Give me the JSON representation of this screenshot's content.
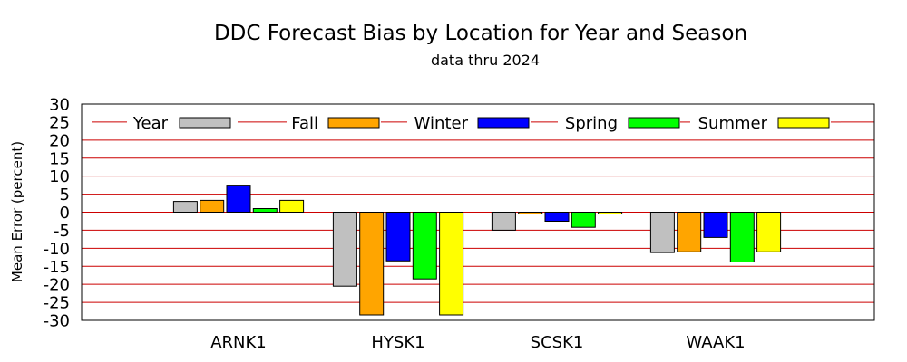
{
  "chart_data": {
    "type": "bar",
    "title": "DDC Forecast Bias by Location for Year and Season",
    "subtitle": "data thru 2024",
    "xlabel": "",
    "ylabel": "Mean Error (percent)",
    "ylim": [
      -30,
      30
    ],
    "yticks": [
      30,
      25,
      20,
      15,
      10,
      5,
      0,
      -5,
      -10,
      -15,
      -20,
      -25,
      -30
    ],
    "grid": true,
    "legend_position": "top",
    "categories": [
      "ARNK1",
      "HYSK1",
      "SCSK1",
      "WAAK1"
    ],
    "series": [
      {
        "name": "Year",
        "color": "#c0c0c0",
        "values": [
          3.0,
          -20.5,
          -5.0,
          -11.2
        ]
      },
      {
        "name": "Fall",
        "color": "#ffa500",
        "values": [
          3.3,
          -28.5,
          -0.5,
          -11.0
        ]
      },
      {
        "name": "Winter",
        "color": "#0000ff",
        "values": [
          7.5,
          -13.5,
          -2.5,
          -7.0
        ]
      },
      {
        "name": "Spring",
        "color": "#00ff00",
        "values": [
          1.0,
          -18.5,
          -4.2,
          -13.8
        ]
      },
      {
        "name": "Summer",
        "color": "#ffff00",
        "values": [
          3.3,
          -28.5,
          -0.5,
          -11.0
        ]
      }
    ],
    "gridline_color": "#cc0000"
  }
}
